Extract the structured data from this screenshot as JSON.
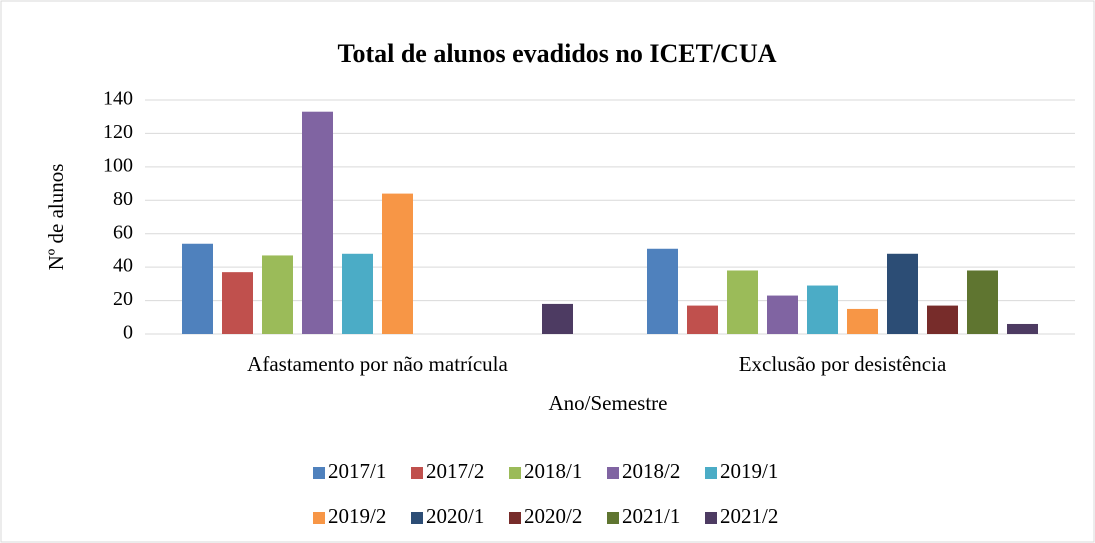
{
  "chart_data": {
    "type": "bar",
    "title": "Total de alunos evadidos no ICET/CUA",
    "x_label": "Ano/Semestre",
    "y_label": "Nº de alunos",
    "categories": [
      "Afastamento por não matrícula",
      "Exclusão por desistência"
    ],
    "series": [
      {
        "name": "2017/1",
        "color": "#4f81bd",
        "values": [
          54,
          51
        ]
      },
      {
        "name": "2017/2",
        "color": "#c0504d",
        "values": [
          37,
          17
        ]
      },
      {
        "name": "2018/1",
        "color": "#9bbb59",
        "values": [
          47,
          38
        ]
      },
      {
        "name": "2018/2",
        "color": "#8064a2",
        "values": [
          133,
          23
        ]
      },
      {
        "name": "2019/1",
        "color": "#4bacc6",
        "values": [
          48,
          29
        ]
      },
      {
        "name": "2019/2",
        "color": "#f79646",
        "values": [
          84,
          15
        ]
      },
      {
        "name": "2020/1",
        "color": "#2c4d75",
        "values": [
          0,
          48
        ]
      },
      {
        "name": "2020/2",
        "color": "#772c2a",
        "values": [
          0,
          17
        ]
      },
      {
        "name": "2021/1",
        "color": "#5f7530",
        "values": [
          0,
          38
        ]
      },
      {
        "name": "2021/2",
        "color": "#4d3b62",
        "values": [
          18,
          6
        ]
      }
    ],
    "ylim": [
      0,
      140
    ],
    "yticks": [
      0,
      20,
      40,
      60,
      80,
      100,
      120,
      140
    ],
    "grid": true,
    "legend": "bottom"
  }
}
